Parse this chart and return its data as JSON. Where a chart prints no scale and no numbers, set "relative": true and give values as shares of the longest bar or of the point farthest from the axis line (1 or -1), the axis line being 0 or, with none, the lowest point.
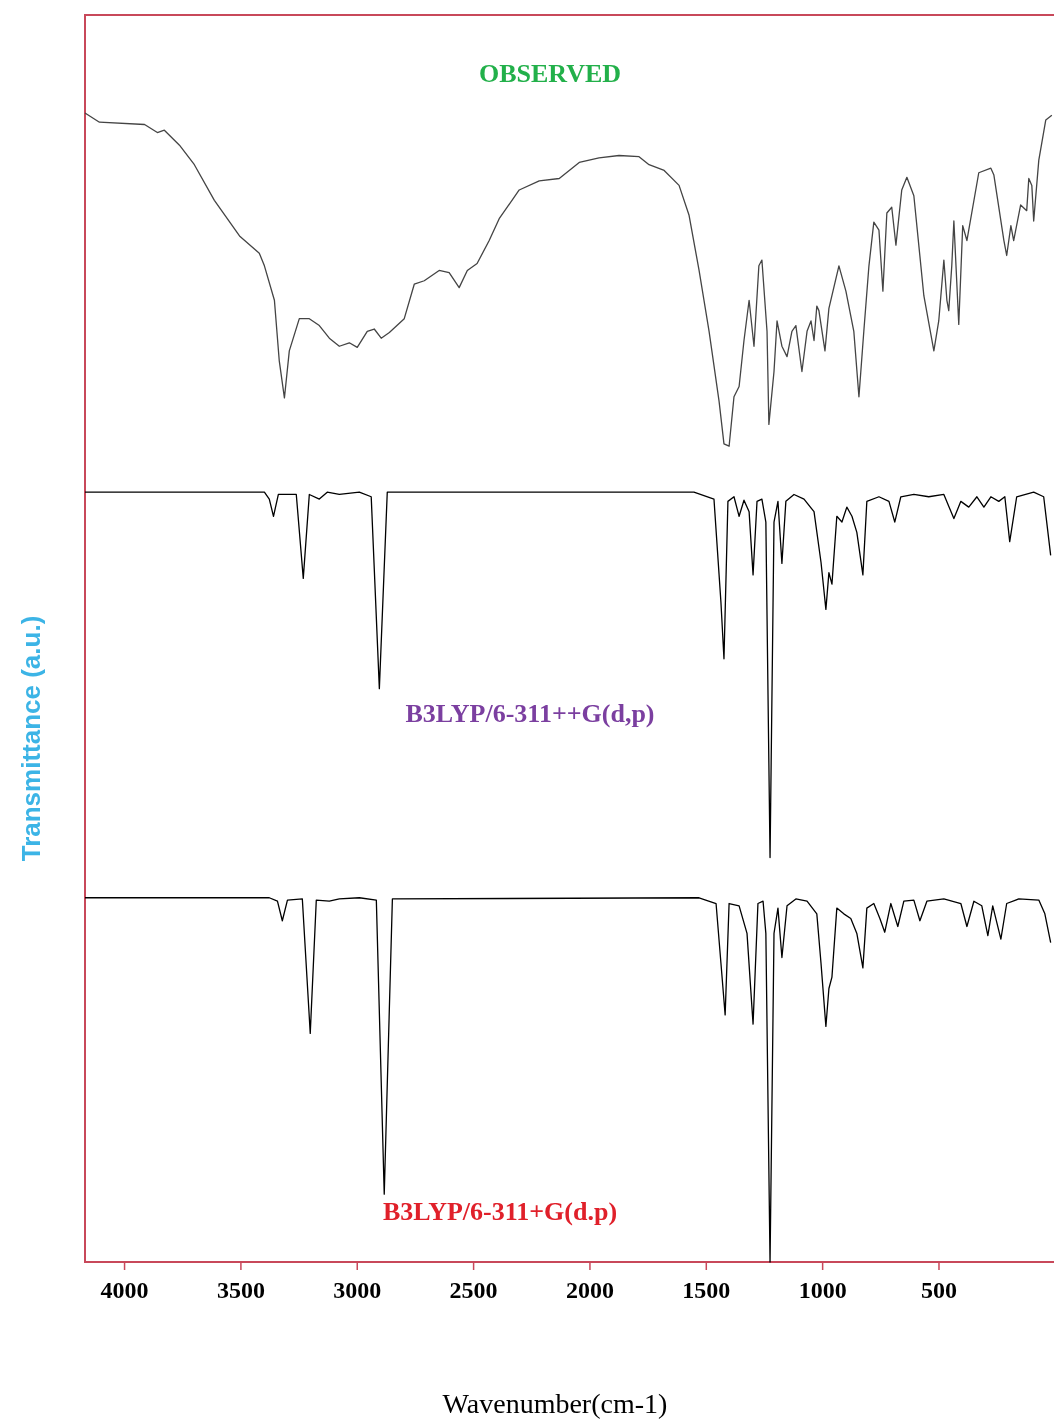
{
  "chart_data": {
    "type": "line",
    "relative": true,
    "xlabel": "Wavenumber(cm-1)",
    "ylabel": "Transmittance (a.u.)",
    "xlim": [
      4170,
      10
    ],
    "xticks": [
      4000,
      3500,
      3000,
      2500,
      2000,
      1500,
      1000,
      500
    ],
    "grid": false,
    "marker": "none",
    "line_style": "solid",
    "series": [
      {
        "name": "OBSERVED",
        "color": "#444444",
        "x": [
          4170,
          4108,
          3914,
          3859,
          3829,
          3764,
          3700,
          3614,
          3506,
          3421,
          3399,
          3356,
          3335,
          3313,
          3292,
          3249,
          3206,
          3163,
          3120,
          3077,
          3034,
          3000,
          2957,
          2927,
          2897,
          2862,
          2798,
          2755,
          2712,
          2648,
          2605,
          2562,
          2527,
          2485,
          2433,
          2390,
          2304,
          2218,
          2132,
          2046,
          1961,
          1875,
          1789,
          1746,
          1681,
          1617,
          1574,
          1531,
          1488,
          1445,
          1424,
          1402,
          1381,
          1359,
          1338,
          1316,
          1295,
          1274,
          1261,
          1239,
          1231,
          1209,
          1196,
          1175,
          1153,
          1132,
          1115,
          1089,
          1067,
          1050,
          1037,
          1025,
          1016,
          990,
          973,
          930,
          900,
          866,
          844,
          823,
          801,
          780,
          758,
          741,
          724,
          703,
          685,
          660,
          638,
          608,
          565,
          522,
          501,
          479,
          466,
          458,
          445,
          436,
          415,
          398,
          380,
          329,
          277,
          264,
          221,
          209,
          191,
          179,
          149,
          123,
          114,
          101,
          93,
          71,
          41,
          15
        ],
        "values": [
          1.0,
          0.992,
          0.99,
          0.983,
          0.985,
          0.972,
          0.955,
          0.924,
          0.893,
          0.878,
          0.867,
          0.837,
          0.784,
          0.752,
          0.793,
          0.821,
          0.821,
          0.815,
          0.804,
          0.797,
          0.8,
          0.796,
          0.81,
          0.812,
          0.804,
          0.809,
          0.821,
          0.851,
          0.854,
          0.863,
          0.861,
          0.848,
          0.863,
          0.869,
          0.889,
          0.908,
          0.933,
          0.941,
          0.943,
          0.957,
          0.961,
          0.963,
          0.962,
          0.955,
          0.95,
          0.937,
          0.911,
          0.863,
          0.81,
          0.749,
          0.712,
          0.71,
          0.753,
          0.762,
          0.802,
          0.837,
          0.797,
          0.867,
          0.872,
          0.81,
          0.729,
          0.775,
          0.819,
          0.797,
          0.788,
          0.81,
          0.815,
          0.775,
          0.81,
          0.819,
          0.802,
          0.832,
          0.828,
          0.793,
          0.83,
          0.867,
          0.845,
          0.81,
          0.753,
          0.81,
          0.867,
          0.905,
          0.898,
          0.845,
          0.913,
          0.918,
          0.885,
          0.933,
          0.944,
          0.928,
          0.841,
          0.793,
          0.819,
          0.872,
          0.837,
          0.828,
          0.867,
          0.906,
          0.816,
          0.902,
          0.889,
          0.948,
          0.952,
          0.946,
          0.889,
          0.876,
          0.902,
          0.889,
          0.92,
          0.915,
          0.943,
          0.937,
          0.906,
          0.959,
          0.994,
          0.998
        ]
      },
      {
        "name": "B3LYP/6-311++G(d,p)",
        "color": "#000000",
        "x": [
          4170,
          3399,
          3378,
          3360,
          3339,
          3262,
          3232,
          3206,
          3163,
          3129,
          3077,
          2991,
          2940,
          2905,
          2871,
          1553,
          1467,
          1437,
          1424,
          1407,
          1381,
          1359,
          1338,
          1316,
          1299,
          1282,
          1261,
          1244,
          1226,
          1209,
          1192,
          1175,
          1158,
          1123,
          1080,
          1037,
          1007,
          986,
          973,
          960,
          939,
          917,
          896,
          874,
          853,
          827,
          810,
          758,
          715,
          690,
          664,
          608,
          544,
          479,
          436,
          406,
          372,
          337,
          307,
          277,
          243,
          217,
          196,
          166,
          93,
          50,
          20
        ],
        "values": [
          0.67,
          0.67,
          0.664,
          0.649,
          0.668,
          0.668,
          0.595,
          0.668,
          0.664,
          0.67,
          0.668,
          0.67,
          0.666,
          0.499,
          0.67,
          0.67,
          0.664,
          0.574,
          0.525,
          0.662,
          0.666,
          0.649,
          0.663,
          0.653,
          0.598,
          0.662,
          0.664,
          0.644,
          0.352,
          0.644,
          0.662,
          0.608,
          0.662,
          0.668,
          0.664,
          0.653,
          0.609,
          0.568,
          0.6,
          0.59,
          0.649,
          0.644,
          0.657,
          0.649,
          0.635,
          0.598,
          0.662,
          0.666,
          0.662,
          0.644,
          0.666,
          0.668,
          0.666,
          0.668,
          0.647,
          0.662,
          0.657,
          0.666,
          0.657,
          0.666,
          0.662,
          0.666,
          0.627,
          0.666,
          0.67,
          0.666,
          0.615
        ]
      },
      {
        "name": "B3LYP/6-311+G(d.p)",
        "color": "#000000",
        "x": [
          4170,
          3378,
          3343,
          3322,
          3300,
          3236,
          3202,
          3176,
          3120,
          3077,
          2991,
          2918,
          2884,
          2849,
          1531,
          1458,
          1437,
          1419,
          1402,
          1359,
          1325,
          1299,
          1278,
          1256,
          1244,
          1226,
          1209,
          1192,
          1175,
          1153,
          1115,
          1067,
          1025,
          1007,
          986,
          973,
          960,
          939,
          909,
          879,
          853,
          827,
          810,
          780,
          754,
          733,
          707,
          677,
          651,
          608,
          582,
          552,
          479,
          406,
          380,
          350,
          316,
          290,
          269,
          234,
          209,
          157,
          71,
          45,
          20
        ],
        "values": [
          0.317,
          0.317,
          0.314,
          0.297,
          0.315,
          0.316,
          0.199,
          0.315,
          0.314,
          0.316,
          0.317,
          0.315,
          0.059,
          0.316,
          0.317,
          0.312,
          0.26,
          0.215,
          0.312,
          0.31,
          0.286,
          0.207,
          0.312,
          0.314,
          0.286,
          0.0,
          0.286,
          0.308,
          0.265,
          0.31,
          0.316,
          0.314,
          0.303,
          0.26,
          0.205,
          0.238,
          0.248,
          0.308,
          0.303,
          0.299,
          0.286,
          0.256,
          0.308,
          0.312,
          0.299,
          0.287,
          0.312,
          0.292,
          0.314,
          0.315,
          0.297,
          0.314,
          0.316,
          0.312,
          0.292,
          0.314,
          0.31,
          0.284,
          0.31,
          0.281,
          0.312,
          0.316,
          0.315,
          0.303,
          0.278
        ]
      }
    ]
  }
}
